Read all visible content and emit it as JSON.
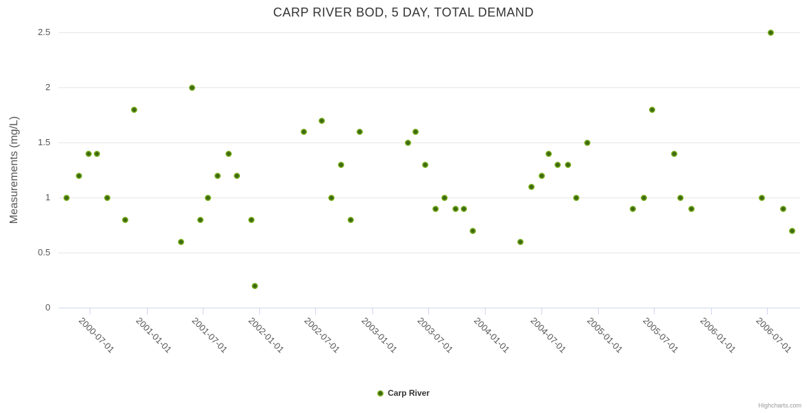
{
  "chart": {
    "credits_label": "Highcharts.com"
  },
  "colors": {
    "series_green": "#7db41d",
    "series_green_dark": "#3c660f",
    "gridline": "#e6e6e6",
    "axis_line": "#ccd6eb",
    "title_text": "#333333",
    "label_text": "#555555",
    "credits_text": "#999999"
  },
  "chart_data": {
    "type": "scatter",
    "title": "CARP RIVER BOD, 5 DAY, TOTAL DEMAND",
    "xlabel": "",
    "ylabel": "Measurements (mg/L)",
    "ylim": [
      0,
      2.5
    ],
    "y_ticks": [
      0,
      0.5,
      1,
      1.5,
      2,
      2.5
    ],
    "x_ticks": [
      "2000-07-01",
      "2001-01-01",
      "2001-07-01",
      "2002-01-01",
      "2002-07-01",
      "2003-01-01",
      "2003-07-01",
      "2004-01-01",
      "2004-07-01",
      "2005-01-01",
      "2005-07-01",
      "2006-01-01",
      "2006-07-01"
    ],
    "x_range": [
      "2000-03-22",
      "2006-10-17"
    ],
    "grid": "horizontal-only",
    "legend_position": "bottom-center",
    "series": [
      {
        "name": "Carp River",
        "color": "#7db41d",
        "points": [
          {
            "x": "2000-04-17",
            "y": 1.0
          },
          {
            "x": "2000-05-27",
            "y": 1.2
          },
          {
            "x": "2000-06-28",
            "y": 1.4
          },
          {
            "x": "2000-07-24",
            "y": 1.4
          },
          {
            "x": "2000-08-27",
            "y": 1.0
          },
          {
            "x": "2000-10-24",
            "y": 0.8
          },
          {
            "x": "2000-11-21",
            "y": 1.8
          },
          {
            "x": "2001-04-22",
            "y": 0.6
          },
          {
            "x": "2001-05-28",
            "y": 2.0
          },
          {
            "x": "2001-06-24",
            "y": 0.8
          },
          {
            "x": "2001-07-18",
            "y": 1.0
          },
          {
            "x": "2001-08-19",
            "y": 1.2
          },
          {
            "x": "2001-09-24",
            "y": 1.4
          },
          {
            "x": "2001-10-21",
            "y": 1.2
          },
          {
            "x": "2001-12-05",
            "y": 0.8
          },
          {
            "x": "2001-12-18",
            "y": 0.2
          },
          {
            "x": "2002-05-24",
            "y": 1.6
          },
          {
            "x": "2002-07-21",
            "y": 1.7
          },
          {
            "x": "2002-08-22",
            "y": 1.0
          },
          {
            "x": "2002-09-23",
            "y": 1.3
          },
          {
            "x": "2002-10-24",
            "y": 0.8
          },
          {
            "x": "2002-11-22",
            "y": 1.6
          },
          {
            "x": "2003-04-26",
            "y": 1.5
          },
          {
            "x": "2003-05-22",
            "y": 1.6
          },
          {
            "x": "2003-06-21",
            "y": 1.3
          },
          {
            "x": "2003-07-26",
            "y": 0.9
          },
          {
            "x": "2003-08-22",
            "y": 1.0
          },
          {
            "x": "2003-09-27",
            "y": 0.9
          },
          {
            "x": "2003-10-24",
            "y": 0.9
          },
          {
            "x": "2003-11-22",
            "y": 0.7
          },
          {
            "x": "2004-04-25",
            "y": 0.6
          },
          {
            "x": "2004-05-30",
            "y": 1.1
          },
          {
            "x": "2004-07-03",
            "y": 1.2
          },
          {
            "x": "2004-07-25",
            "y": 1.4
          },
          {
            "x": "2004-08-23",
            "y": 1.3
          },
          {
            "x": "2004-09-26",
            "y": 1.3
          },
          {
            "x": "2004-10-23",
            "y": 1.0
          },
          {
            "x": "2004-11-28",
            "y": 1.5
          },
          {
            "x": "2005-04-23",
            "y": 0.9
          },
          {
            "x": "2005-05-29",
            "y": 1.0
          },
          {
            "x": "2005-06-25",
            "y": 1.8
          },
          {
            "x": "2005-09-05",
            "y": 1.4
          },
          {
            "x": "2005-09-25",
            "y": 1.0
          },
          {
            "x": "2005-10-30",
            "y": 0.9
          },
          {
            "x": "2006-06-16",
            "y": 1.0
          },
          {
            "x": "2006-07-15",
            "y": 2.5
          },
          {
            "x": "2006-08-24",
            "y": 0.9
          },
          {
            "x": "2006-09-22",
            "y": 0.7
          }
        ]
      }
    ]
  }
}
